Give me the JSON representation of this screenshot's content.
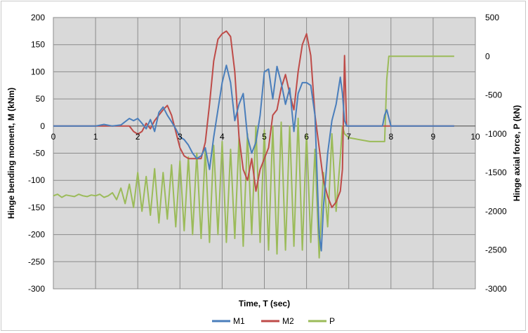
{
  "chart_data": {
    "type": "line",
    "title": "",
    "xlabel": "Time, T (sec)",
    "ylabel": "Hinge bending moment, M (kNm)",
    "y2label": "Hinge axial force, P (kN)",
    "xlim": [
      0,
      10
    ],
    "ylim": [
      -300,
      200
    ],
    "y2lim": [
      -3000,
      500
    ],
    "xticks": [
      "0",
      "1",
      "2",
      "3",
      "4",
      "5",
      "6",
      "7",
      "8",
      "9",
      "10"
    ],
    "yticks": [
      "200",
      "150",
      "100",
      "50",
      "0",
      "-50",
      "-100",
      "-150",
      "-200",
      "-250",
      "-300"
    ],
    "y2ticks": [
      "500",
      "0",
      "-500",
      "-1000",
      "-1500",
      "-2000",
      "-2500",
      "-3000"
    ],
    "grid": true,
    "legend": "bottom",
    "series": [
      {
        "name": "M1",
        "axis": "left",
        "color": "#4a7ebb",
        "x": [
          0,
          1.0,
          1.2,
          1.4,
          1.6,
          1.8,
          1.9,
          2.0,
          2.1,
          2.2,
          2.3,
          2.4,
          2.5,
          2.6,
          2.7,
          2.8,
          2.9,
          3.0,
          3.1,
          3.2,
          3.3,
          3.4,
          3.5,
          3.6,
          3.7,
          3.8,
          3.9,
          4.0,
          4.1,
          4.2,
          4.3,
          4.4,
          4.5,
          4.6,
          4.7,
          4.8,
          4.9,
          5.0,
          5.1,
          5.2,
          5.3,
          5.4,
          5.5,
          5.6,
          5.7,
          5.8,
          5.9,
          6.0,
          6.1,
          6.2,
          6.3,
          6.35,
          6.4,
          6.5,
          6.6,
          6.7,
          6.8,
          6.85,
          6.9,
          6.95,
          7.0,
          7.8,
          7.85,
          7.9,
          7.95,
          8.0,
          9.5
        ],
        "values": [
          0,
          0,
          3,
          0,
          2,
          14,
          10,
          14,
          5,
          -5,
          12,
          -10,
          25,
          35,
          20,
          8,
          -5,
          -20,
          -25,
          -35,
          -50,
          -60,
          -55,
          -40,
          -80,
          -20,
          30,
          80,
          112,
          80,
          10,
          40,
          60,
          -20,
          -50,
          -30,
          20,
          100,
          105,
          50,
          110,
          80,
          40,
          70,
          -10,
          60,
          80,
          80,
          75,
          20,
          -200,
          -230,
          -150,
          -50,
          10,
          40,
          90,
          60,
          10,
          0,
          0,
          0,
          20,
          30,
          15,
          0,
          0
        ]
      },
      {
        "name": "M2",
        "axis": "left",
        "color": "#be4b48",
        "x": [
          0,
          1.0,
          1.8,
          1.9,
          2.0,
          2.1,
          2.2,
          2.3,
          2.4,
          2.5,
          2.6,
          2.7,
          2.8,
          2.9,
          3.0,
          3.1,
          3.2,
          3.3,
          3.4,
          3.5,
          3.6,
          3.7,
          3.8,
          3.9,
          4.0,
          4.1,
          4.2,
          4.3,
          4.4,
          4.5,
          4.6,
          4.7,
          4.8,
          4.9,
          5.0,
          5.1,
          5.2,
          5.3,
          5.4,
          5.5,
          5.6,
          5.7,
          5.8,
          5.9,
          6.0,
          6.1,
          6.2,
          6.3,
          6.4,
          6.5,
          6.6,
          6.7,
          6.8,
          6.85,
          6.9,
          6.95,
          7.0,
          7.5,
          9.5
        ],
        "values": [
          0,
          0,
          0,
          -10,
          -15,
          -10,
          5,
          -5,
          10,
          20,
          30,
          38,
          20,
          -10,
          -40,
          -55,
          -60,
          -60,
          -60,
          -60,
          -30,
          40,
          120,
          160,
          170,
          175,
          165,
          100,
          -20,
          -80,
          -100,
          -60,
          -120,
          -80,
          -60,
          -40,
          20,
          30,
          70,
          95,
          60,
          30,
          100,
          150,
          170,
          130,
          20,
          -40,
          -100,
          -130,
          -150,
          -140,
          -120,
          -80,
          130,
          0,
          0,
          0,
          0
        ]
      },
      {
        "name": "P",
        "axis": "right",
        "color": "#9bbb59",
        "x": [
          0,
          0.1,
          0.2,
          0.3,
          0.4,
          0.5,
          0.6,
          0.7,
          0.8,
          0.9,
          1.0,
          1.1,
          1.2,
          1.3,
          1.4,
          1.5,
          1.6,
          1.7,
          1.8,
          1.9,
          2.0,
          2.1,
          2.2,
          2.3,
          2.4,
          2.5,
          2.6,
          2.7,
          2.8,
          2.9,
          3.0,
          3.1,
          3.2,
          3.3,
          3.4,
          3.5,
          3.6,
          3.7,
          3.8,
          3.9,
          4.0,
          4.1,
          4.2,
          4.3,
          4.4,
          4.5,
          4.6,
          4.7,
          4.8,
          4.9,
          5.0,
          5.1,
          5.2,
          5.3,
          5.4,
          5.5,
          5.6,
          5.7,
          5.8,
          5.9,
          6.0,
          6.1,
          6.2,
          6.3,
          6.4,
          6.5,
          6.6,
          6.7,
          6.8,
          6.85,
          6.9,
          7.0,
          7.5,
          7.85,
          7.9,
          7.95,
          9.5
        ],
        "values": [
          -1800,
          -1780,
          -1820,
          -1790,
          -1800,
          -1810,
          -1780,
          -1800,
          -1810,
          -1790,
          -1800,
          -1780,
          -1820,
          -1800,
          -1760,
          -1850,
          -1700,
          -1900,
          -1650,
          -1950,
          -1500,
          -2000,
          -1550,
          -2050,
          -1450,
          -2150,
          -1500,
          -2100,
          -1400,
          -2200,
          -1350,
          -2250,
          -1300,
          -2300,
          -1250,
          -2350,
          -1200,
          -2400,
          -1150,
          -2300,
          -1100,
          -2400,
          -1200,
          -2350,
          -1050,
          -2450,
          -1000,
          -2300,
          -900,
          -2400,
          -950,
          -2500,
          -900,
          -2550,
          -850,
          -2500,
          -900,
          -2450,
          -800,
          -2500,
          -1000,
          -2400,
          -1200,
          -2600,
          -1500,
          -2200,
          -1000,
          -2000,
          -1300,
          -900,
          -1000,
          -1050,
          -1100,
          -1100,
          -300,
          0,
          0
        ]
      }
    ]
  }
}
